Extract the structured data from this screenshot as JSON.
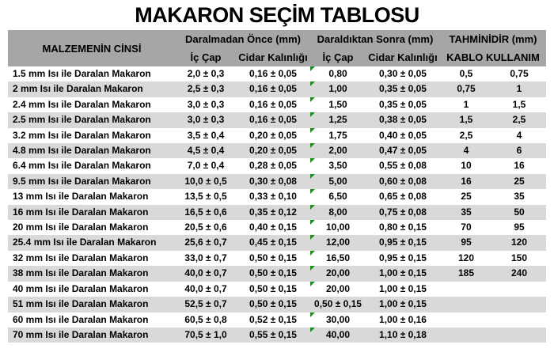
{
  "title": "MAKARON SEÇİM TABLOSU",
  "colors": {
    "header_bg": "#a6a6a6",
    "row_stripe": "#d9d9d9",
    "text": "#000000",
    "flag_green": "#1e8e1e"
  },
  "table": {
    "header": {
      "material": "MALZEMENİN CİNSİ",
      "group_before": "Daralmadan Önce (mm)",
      "group_after": "Daraldıktan Sonra (mm)",
      "group_estimate": "TAHMİNİDİR (mm)",
      "ic_cap_before": "İç Çap",
      "cidar_before": "Cidar Kalınlığı",
      "ic_cap_after": "İç Çap",
      "cidar_after": "Cidar Kalınlığı",
      "kablo": "KABLO KULLANIM"
    },
    "rows": [
      {
        "material": "1.5 mm Isı ile Daralan Makaron",
        "ic_cap_once": "2,0 ± 0,3",
        "cidar_once": "0,16 ± 0,05",
        "ic_cap_sonra": "0,80",
        "cidar_sonra": "0,30 ± 0,05",
        "kablo_min": "0,5",
        "kablo_max": "0,75",
        "flag": true
      },
      {
        "material": "2 mm Isı ile Daralan Makaron",
        "ic_cap_once": "2,5 ± 0,3",
        "cidar_once": "0,16 ± 0,05",
        "ic_cap_sonra": "1,00",
        "cidar_sonra": "0,35 ± 0,05",
        "kablo_min": "0,75",
        "kablo_max": "1",
        "flag": true
      },
      {
        "material": "2.4 mm Isı ile Daralan Makaron",
        "ic_cap_once": "3,0 ± 0,3",
        "cidar_once": "0,16 ± 0,05",
        "ic_cap_sonra": "1,50",
        "cidar_sonra": "0,35 ± 0,05",
        "kablo_min": "1",
        "kablo_max": "1,5",
        "flag": true
      },
      {
        "material": "2.5 mm Isı ile Daralan Makaron",
        "ic_cap_once": "3,0 ± 0,3",
        "cidar_once": "0,16 ± 0,05",
        "ic_cap_sonra": "1,25",
        "cidar_sonra": "0,38 ± 0,05",
        "kablo_min": "1,5",
        "kablo_max": "2,5",
        "flag": true
      },
      {
        "material": "3.2 mm Isı ile Daralan Makaron",
        "ic_cap_once": "3,5 ± 0,4",
        "cidar_once": "0,20 ± 0,05",
        "ic_cap_sonra": "1,75",
        "cidar_sonra": "0,40 ± 0,05",
        "kablo_min": "2,5",
        "kablo_max": "4",
        "flag": true
      },
      {
        "material": "4.8 mm Isı ile Daralan Makaron",
        "ic_cap_once": "4,5 ± 0,4",
        "cidar_once": "0,20 ± 0,05",
        "ic_cap_sonra": "2,00",
        "cidar_sonra": "0,47 ± 0,05",
        "kablo_min": "4",
        "kablo_max": "6",
        "flag": true
      },
      {
        "material": "6.4 mm Isı ile Daralan Makaron",
        "ic_cap_once": "7,0 ± 0,4",
        "cidar_once": "0,28 ± 0,05",
        "ic_cap_sonra": "3,50",
        "cidar_sonra": "0,55 ± 0,08",
        "kablo_min": "10",
        "kablo_max": "16",
        "flag": true
      },
      {
        "material": "9.5 mm Isı ile Daralan Makaron",
        "ic_cap_once": "10,0 ± 0,5",
        "cidar_once": "0,30 ± 0,08",
        "ic_cap_sonra": "5,00",
        "cidar_sonra": "0,60 ± 0,08",
        "kablo_min": "16",
        "kablo_max": "25",
        "flag": true
      },
      {
        "material": "13 mm Isı ile Daralan Makaron",
        "ic_cap_once": "13,5 ± 0,5",
        "cidar_once": "0,33 ± 0,10",
        "ic_cap_sonra": "6,50",
        "cidar_sonra": "0,65 ± 0,08",
        "kablo_min": "25",
        "kablo_max": "35",
        "flag": true
      },
      {
        "material": "16 mm Isı ile Daralan Makaron",
        "ic_cap_once": "16,5 ± 0,6",
        "cidar_once": "0,35 ± 0,12",
        "ic_cap_sonra": "8,00",
        "cidar_sonra": "0,75 ± 0,08",
        "kablo_min": "35",
        "kablo_max": "50",
        "flag": true
      },
      {
        "material": "20 mm Isı ile Daralan Makaron",
        "ic_cap_once": "20,5 ± 0,6",
        "cidar_once": "0,40 ± 0,15",
        "ic_cap_sonra": "10,00",
        "cidar_sonra": "0,80 ± 0,15",
        "kablo_min": "70",
        "kablo_max": "95",
        "flag": true
      },
      {
        "material": "25.4 mm Isı ile Daralan Makaron",
        "ic_cap_once": "25,6 ± 0,7",
        "cidar_once": "0,45 ± 0,15",
        "ic_cap_sonra": "12,00",
        "cidar_sonra": "0,95 ± 0,15",
        "kablo_min": "95",
        "kablo_max": "120",
        "flag": true
      },
      {
        "material": "32 mm Isı ile Daralan Makaron",
        "ic_cap_once": "33,0 ± 0,7",
        "cidar_once": "0,50 ± 0,15",
        "ic_cap_sonra": "16,50",
        "cidar_sonra": "0,95 ± 0,15",
        "kablo_min": "120",
        "kablo_max": "150",
        "flag": true
      },
      {
        "material": "38 mm Isı ile Daralan Makaron",
        "ic_cap_once": "40,0 ± 0,7",
        "cidar_once": "0,50 ± 0,15",
        "ic_cap_sonra": "20,00",
        "cidar_sonra": "1,00 ± 0,15",
        "kablo_min": "185",
        "kablo_max": "240",
        "flag": true
      },
      {
        "material": "40 mm Isı ile Daralan Makaron",
        "ic_cap_once": "40,0 ± 0,7",
        "cidar_once": "0,50 ± 0,15",
        "ic_cap_sonra": "20,00",
        "cidar_sonra": "1,00 ± 0,15",
        "kablo_min": "",
        "kablo_max": "",
        "flag": true
      },
      {
        "material": "51 mm Isı ile Daralan Makaron",
        "ic_cap_once": "52,5 ± 0,7",
        "cidar_once": "0,50 ± 0,15",
        "ic_cap_sonra": "0,50 ± 0,15",
        "cidar_sonra": "1,00 ± 0,15",
        "kablo_min": "",
        "kablo_max": "",
        "flag": false
      },
      {
        "material": "60 mm Isı ile Daralan Makaron",
        "ic_cap_once": "60,5 ± 0,8",
        "cidar_once": "0,52 ± 0,15",
        "ic_cap_sonra": "30,00",
        "cidar_sonra": "1,00 ± 0,16",
        "kablo_min": "",
        "kablo_max": "",
        "flag": true
      },
      {
        "material": "70 mm Isı ile Daralan Makaron",
        "ic_cap_once": "70,5 ± 1,0",
        "cidar_once": "0,55 ± 0,15",
        "ic_cap_sonra": "40,00",
        "cidar_sonra": "1,10 ± 0,18",
        "kablo_min": "",
        "kablo_max": "",
        "flag": true
      }
    ]
  }
}
